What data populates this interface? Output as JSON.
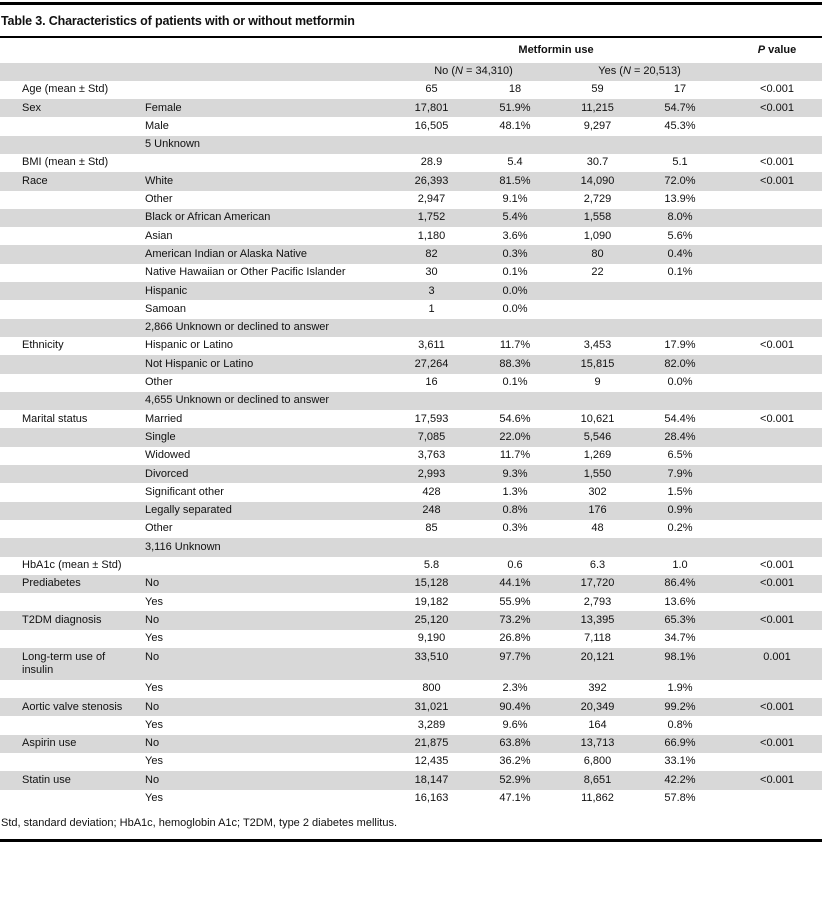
{
  "page": {
    "title": "Table 3. Characteristics of patients with or without metformin",
    "footnote": "Std, standard deviation; HbA1c, hemoglobin A1c; T2DM, type 2 diabetes mellitus.",
    "shading_color": "#d8d8d8",
    "rule_color": "#000000"
  },
  "table": {
    "group_header": "Metformin use",
    "p_header": {
      "italic": "P",
      "rest": " value"
    },
    "no_header": {
      "pre": "No (",
      "n": "N",
      "post": " = 34,310)"
    },
    "yes_header": {
      "pre": "Yes (",
      "n": "N",
      "post": " = 20,513)"
    },
    "columns": [
      "characteristic",
      "category",
      "no_count",
      "no_percent",
      "yes_count",
      "yes_percent",
      "p_value"
    ],
    "rows": [
      {
        "label": "Age (mean ± Std)",
        "sub": "",
        "no_n": "65",
        "no_pct": "18",
        "yes_n": "59",
        "yes_pct": "17",
        "p": "<0.001"
      },
      {
        "label": "Sex",
        "sub": "Female",
        "no_n": "17,801",
        "no_pct": "51.9%",
        "yes_n": "11,215",
        "yes_pct": "54.7%",
        "p": "<0.001"
      },
      {
        "label": "",
        "sub": "Male",
        "no_n": "16,505",
        "no_pct": "48.1%",
        "yes_n": "9,297",
        "yes_pct": "45.3%",
        "p": ""
      },
      {
        "label": "",
        "sub": "5 Unknown",
        "no_n": "",
        "no_pct": "",
        "yes_n": "",
        "yes_pct": "",
        "p": ""
      },
      {
        "label": "BMI (mean ± Std)",
        "sub": "",
        "no_n": "28.9",
        "no_pct": "5.4",
        "yes_n": "30.7",
        "yes_pct": "5.1",
        "p": "<0.001"
      },
      {
        "label": "Race",
        "sub": "White",
        "no_n": "26,393",
        "no_pct": "81.5%",
        "yes_n": "14,090",
        "yes_pct": "72.0%",
        "p": "<0.001"
      },
      {
        "label": "",
        "sub": "Other",
        "no_n": "2,947",
        "no_pct": "9.1%",
        "yes_n": "2,729",
        "yes_pct": "13.9%",
        "p": ""
      },
      {
        "label": "",
        "sub": "Black or African American",
        "no_n": "1,752",
        "no_pct": "5.4%",
        "yes_n": "1,558",
        "yes_pct": "8.0%",
        "p": ""
      },
      {
        "label": "",
        "sub": "Asian",
        "no_n": "1,180",
        "no_pct": "3.6%",
        "yes_n": "1,090",
        "yes_pct": "5.6%",
        "p": ""
      },
      {
        "label": "",
        "sub": "American Indian or Alaska Native",
        "no_n": "82",
        "no_pct": "0.3%",
        "yes_n": "80",
        "yes_pct": "0.4%",
        "p": ""
      },
      {
        "label": "",
        "sub": "Native Hawaiian or Other Pacific Islander",
        "no_n": "30",
        "no_pct": "0.1%",
        "yes_n": "22",
        "yes_pct": "0.1%",
        "p": ""
      },
      {
        "label": "",
        "sub": "Hispanic",
        "no_n": "3",
        "no_pct": "0.0%",
        "yes_n": "",
        "yes_pct": "",
        "p": ""
      },
      {
        "label": "",
        "sub": "Samoan",
        "no_n": "1",
        "no_pct": "0.0%",
        "yes_n": "",
        "yes_pct": "",
        "p": ""
      },
      {
        "label": "",
        "sub": "2,866 Unknown or declined to answer",
        "no_n": "",
        "no_pct": "",
        "yes_n": "",
        "yes_pct": "",
        "p": ""
      },
      {
        "label": "Ethnicity",
        "sub": "Hispanic or Latino",
        "no_n": "3,611",
        "no_pct": "11.7%",
        "yes_n": "3,453",
        "yes_pct": "17.9%",
        "p": "<0.001"
      },
      {
        "label": "",
        "sub": "Not Hispanic or Latino",
        "no_n": "27,264",
        "no_pct": "88.3%",
        "yes_n": "15,815",
        "yes_pct": "82.0%",
        "p": ""
      },
      {
        "label": "",
        "sub": "Other",
        "no_n": "16",
        "no_pct": "0.1%",
        "yes_n": "9",
        "yes_pct": "0.0%",
        "p": ""
      },
      {
        "label": "",
        "sub": "4,655 Unknown or declined to answer",
        "no_n": "",
        "no_pct": "",
        "yes_n": "",
        "yes_pct": "",
        "p": ""
      },
      {
        "label": "Marital status",
        "sub": "Married",
        "no_n": "17,593",
        "no_pct": "54.6%",
        "yes_n": "10,621",
        "yes_pct": "54.4%",
        "p": "<0.001"
      },
      {
        "label": "",
        "sub": "Single",
        "no_n": "7,085",
        "no_pct": "22.0%",
        "yes_n": "5,546",
        "yes_pct": "28.4%",
        "p": ""
      },
      {
        "label": "",
        "sub": "Widowed",
        "no_n": "3,763",
        "no_pct": "11.7%",
        "yes_n": "1,269",
        "yes_pct": "6.5%",
        "p": ""
      },
      {
        "label": "",
        "sub": "Divorced",
        "no_n": "2,993",
        "no_pct": "9.3%",
        "yes_n": "1,550",
        "yes_pct": "7.9%",
        "p": ""
      },
      {
        "label": "",
        "sub": "Significant other",
        "no_n": "428",
        "no_pct": "1.3%",
        "yes_n": "302",
        "yes_pct": "1.5%",
        "p": ""
      },
      {
        "label": "",
        "sub": "Legally separated",
        "no_n": "248",
        "no_pct": "0.8%",
        "yes_n": "176",
        "yes_pct": "0.9%",
        "p": ""
      },
      {
        "label": "",
        "sub": "Other",
        "no_n": "85",
        "no_pct": "0.3%",
        "yes_n": "48",
        "yes_pct": "0.2%",
        "p": ""
      },
      {
        "label": "",
        "sub": "3,116 Unknown",
        "no_n": "",
        "no_pct": "",
        "yes_n": "",
        "yes_pct": "",
        "p": ""
      },
      {
        "label": "HbA1c (mean ± Std)",
        "sub": "",
        "no_n": "5.8",
        "no_pct": "0.6",
        "yes_n": "6.3",
        "yes_pct": "1.0",
        "p": "<0.001"
      },
      {
        "label": "Prediabetes",
        "sub": "No",
        "no_n": "15,128",
        "no_pct": "44.1%",
        "yes_n": "17,720",
        "yes_pct": "86.4%",
        "p": "<0.001"
      },
      {
        "label": "",
        "sub": "Yes",
        "no_n": "19,182",
        "no_pct": "55.9%",
        "yes_n": "2,793",
        "yes_pct": "13.6%",
        "p": ""
      },
      {
        "label": "T2DM diagnosis",
        "sub": "No",
        "no_n": "25,120",
        "no_pct": "73.2%",
        "yes_n": "13,395",
        "yes_pct": "65.3%",
        "p": "<0.001"
      },
      {
        "label": "",
        "sub": "Yes",
        "no_n": "9,190",
        "no_pct": "26.8%",
        "yes_n": "7,118",
        "yes_pct": "34.7%",
        "p": ""
      },
      {
        "label": "Long-term use of insulin",
        "sub": "No",
        "no_n": "33,510",
        "no_pct": "97.7%",
        "yes_n": "20,121",
        "yes_pct": "98.1%",
        "p": "0.001"
      },
      {
        "label": "",
        "sub": "Yes",
        "no_n": "800",
        "no_pct": "2.3%",
        "yes_n": "392",
        "yes_pct": "1.9%",
        "p": ""
      },
      {
        "label": "Aortic valve stenosis",
        "sub": "No",
        "no_n": "31,021",
        "no_pct": "90.4%",
        "yes_n": "20,349",
        "yes_pct": "99.2%",
        "p": "<0.001"
      },
      {
        "label": "",
        "sub": "Yes",
        "no_n": "3,289",
        "no_pct": "9.6%",
        "yes_n": "164",
        "yes_pct": "0.8%",
        "p": ""
      },
      {
        "label": "Aspirin use",
        "sub": "No",
        "no_n": "21,875",
        "no_pct": "63.8%",
        "yes_n": "13,713",
        "yes_pct": "66.9%",
        "p": "<0.001"
      },
      {
        "label": "",
        "sub": "Yes",
        "no_n": "12,435",
        "no_pct": "36.2%",
        "yes_n": "6,800",
        "yes_pct": "33.1%",
        "p": ""
      },
      {
        "label": "Statin use",
        "sub": "No",
        "no_n": "18,147",
        "no_pct": "52.9%",
        "yes_n": "8,651",
        "yes_pct": "42.2%",
        "p": "<0.001"
      },
      {
        "label": "",
        "sub": "Yes",
        "no_n": "16,163",
        "no_pct": "47.1%",
        "yes_n": "11,862",
        "yes_pct": "57.8%",
        "p": ""
      }
    ]
  }
}
